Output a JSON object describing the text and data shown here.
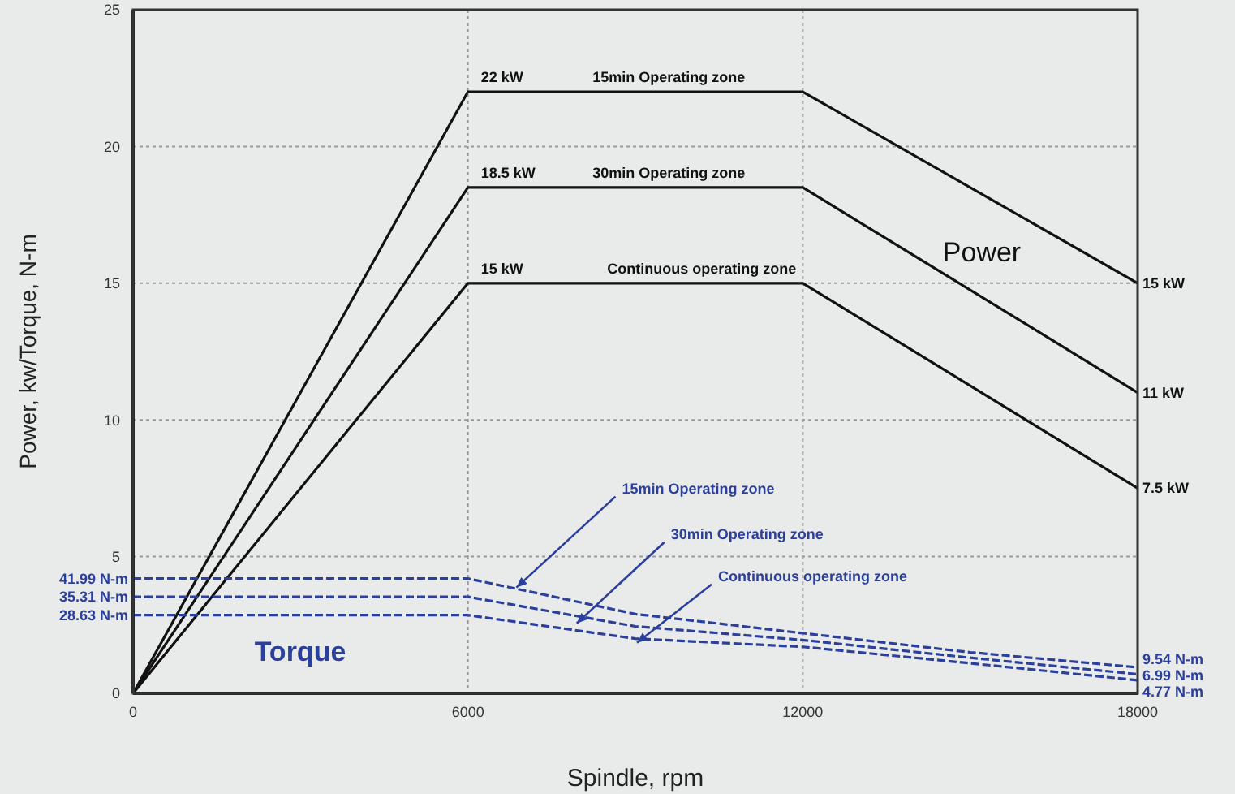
{
  "chart_data": {
    "type": "line",
    "xlabel": "Spindle, rpm",
    "ylabel": "Power, kw/Torque, N-m",
    "xlim": [
      0,
      18000
    ],
    "xticks": [
      0,
      6000,
      12000,
      18000
    ],
    "ylim": [
      0,
      25
    ],
    "yticks": [
      0,
      5,
      10,
      15,
      20,
      25
    ],
    "grid": true,
    "marker": "none",
    "series": [
      {
        "color": "#111111",
        "x": [
          0,
          6000,
          12000,
          18000
        ],
        "values": [
          0,
          22,
          22,
          15
        ],
        "line_style": "solid"
      },
      {
        "color": "#111111",
        "x": [
          0,
          6000,
          12000,
          18000
        ],
        "values": [
          0,
          18.5,
          18.5,
          11
        ],
        "line_style": "solid"
      },
      {
        "color": "#111111",
        "x": [
          0,
          6000,
          12000,
          18000
        ],
        "values": [
          0,
          15,
          15,
          7.5
        ],
        "line_style": "solid"
      },
      {
        "color": "#2b3f9c",
        "x": [
          0,
          6000,
          9000,
          12000,
          15000,
          18000
        ],
        "values": [
          4.2,
          4.2,
          2.9,
          2.2,
          1.5,
          0.95
        ],
        "line_style": "dashed"
      },
      {
        "color": "#2b3f9c",
        "x": [
          0,
          6000,
          9000,
          12000,
          15000,
          18000
        ],
        "values": [
          3.53,
          3.53,
          2.45,
          1.95,
          1.3,
          0.7
        ],
        "line_style": "dashed"
      },
      {
        "color": "#2b3f9c",
        "x": [
          0,
          6000,
          9000,
          12000,
          15000,
          18000
        ],
        "values": [
          2.86,
          2.86,
          2.0,
          1.7,
          1.1,
          0.48
        ],
        "line_style": "dashed"
      }
    ],
    "annotations": [
      {
        "text": "22 kW",
        "x": 6000,
        "y": 22
      },
      {
        "text": "15min Operating zone",
        "x": 9600,
        "y": 22
      },
      {
        "text": "18.5 kW",
        "x": 6000,
        "y": 18.5
      },
      {
        "text": "30min Operating zone",
        "x": 9600,
        "y": 18.5
      },
      {
        "text": "15 kW",
        "x": 6000,
        "y": 15
      },
      {
        "text": "Continuous operating zone",
        "x": 12000,
        "y": 15
      },
      {
        "text": "15 kW",
        "x": 18000,
        "y": 15
      },
      {
        "text": "11 kW",
        "x": 18000,
        "y": 11
      },
      {
        "text": "7.5 kW",
        "x": 18000,
        "y": 7.5
      },
      "Power",
      "Torque",
      {
        "text": "41.99 N-m",
        "x": 0,
        "y": 4.2
      },
      {
        "text": "35.31 N-m",
        "x": 0,
        "y": 3.53
      },
      {
        "text": "28.63 N-m",
        "x": 0,
        "y": 2.86
      },
      {
        "text": "9.54 N-m",
        "x": 18000,
        "y": 0.95
      },
      {
        "text": "6.99 N-m",
        "x": 18000,
        "y": 0.7
      },
      {
        "text": "4.77 N-m",
        "x": 18000,
        "y": 0.48
      },
      {
        "text": "15min Operating zone",
        "x": 6870,
        "y": 3.87
      },
      {
        "text": "30min Operating zone",
        "x": 7950,
        "y": 2.56
      },
      {
        "text": "Continuous operating zone",
        "x": 9030,
        "y": 1.85
      }
    ]
  }
}
